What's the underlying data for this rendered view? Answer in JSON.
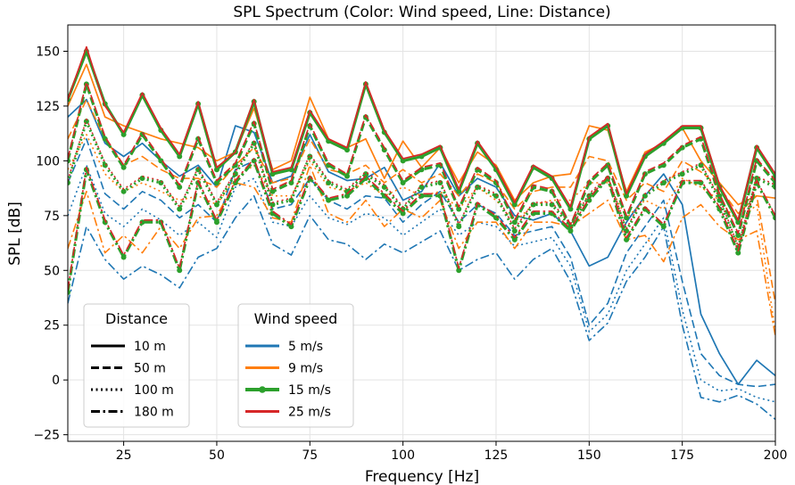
{
  "chart_data": {
    "type": "line",
    "title": "SPL Spectrum (Color: Wind speed, Line: Distance)",
    "xlabel": "Frequency [Hz]",
    "ylabel": "SPL [dB]",
    "xlim": [
      10,
      200
    ],
    "ylim": [
      -28,
      162
    ],
    "xticks": [
      25,
      50,
      75,
      100,
      125,
      150,
      175,
      200
    ],
    "yticks": [
      -25,
      0,
      25,
      50,
      75,
      100,
      125,
      150
    ],
    "grid": true,
    "x": [
      10,
      15,
      20,
      25,
      30,
      35,
      40,
      45,
      50,
      55,
      60,
      65,
      70,
      75,
      80,
      85,
      90,
      95,
      100,
      105,
      110,
      115,
      120,
      125,
      130,
      135,
      140,
      145,
      150,
      155,
      160,
      165,
      170,
      175,
      180,
      185,
      190,
      195,
      200
    ],
    "legends": [
      {
        "title": "Distance",
        "position": "lower-left",
        "entries": [
          {
            "label": "10 m",
            "dash": "solid"
          },
          {
            "label": "50 m",
            "dash": "dashed"
          },
          {
            "label": "100 m",
            "dash": "dotted"
          },
          {
            "label": "180 m",
            "dash": "dashdot"
          }
        ]
      },
      {
        "title": "Wind speed",
        "position": "lower-center",
        "entries": [
          {
            "label": "5 m/s",
            "color": "#1f77b4"
          },
          {
            "label": "9 m/s",
            "color": "#ff7f0e"
          },
          {
            "label": "15 m/s",
            "color": "#2ca02c",
            "marker": "circle"
          },
          {
            "label": "25 m/s",
            "color": "#d62728"
          }
        ]
      }
    ],
    "series": [
      {
        "wind": "5 m/s",
        "distance": "10 m",
        "color": "#1f77b4",
        "dash": "solid",
        "values": [
          120,
          128,
          108,
          102,
          108,
          100,
          93,
          98,
          88,
          116,
          113,
          90,
          93,
          112,
          95,
          91,
          92,
          97,
          82,
          86,
          99,
          84,
          92,
          88,
          75,
          73,
          76,
          68,
          52,
          56,
          72,
          84,
          94,
          80,
          30,
          12,
          -2,
          9,
          2
        ]
      },
      {
        "wind": "5 m/s",
        "distance": "50 m",
        "color": "#1f77b4",
        "dash": "dashed",
        "values": [
          90,
          110,
          85,
          78,
          86,
          82,
          74,
          80,
          72,
          96,
          100,
          78,
          80,
          92,
          82,
          78,
          84,
          83,
          72,
          80,
          86,
          72,
          80,
          76,
          66,
          68,
          70,
          56,
          25,
          35,
          58,
          70,
          82,
          45,
          12,
          2,
          -2,
          -3,
          -2
        ]
      },
      {
        "wind": "5 m/s",
        "distance": "100 m",
        "color": "#1f77b4",
        "dash": "dotted",
        "values": [
          75,
          98,
          76,
          70,
          78,
          73,
          66,
          72,
          65,
          88,
          92,
          72,
          70,
          84,
          74,
          71,
          76,
          74,
          66,
          72,
          78,
          66,
          72,
          70,
          61,
          63,
          65,
          52,
          22,
          30,
          50,
          62,
          74,
          32,
          0,
          -5,
          -4,
          -8,
          -10
        ]
      },
      {
        "wind": "5 m/s",
        "distance": "180 m",
        "color": "#1f77b4",
        "dash": "dashdot",
        "values": [
          35,
          70,
          55,
          46,
          52,
          48,
          42,
          56,
          60,
          74,
          84,
          62,
          57,
          75,
          64,
          62,
          55,
          62,
          58,
          63,
          68,
          50,
          55,
          58,
          46,
          55,
          60,
          45,
          18,
          26,
          45,
          56,
          70,
          25,
          -8,
          -10,
          -7,
          -11,
          -18
        ]
      },
      {
        "wind": "9 m/s",
        "distance": "10 m",
        "color": "#ff7f0e",
        "dash": "solid",
        "values": [
          125,
          144,
          120,
          116,
          113,
          110,
          108,
          106,
          100,
          104,
          124,
          96,
          100,
          129,
          110,
          106,
          110,
          92,
          109,
          97,
          106,
          90,
          104,
          98,
          82,
          90,
          93,
          94,
          116,
          114,
          86,
          104,
          108,
          115,
          100,
          90,
          80,
          84,
          83
        ]
      },
      {
        "wind": "9 m/s",
        "distance": "50 m",
        "color": "#ff7f0e",
        "dash": "dashed",
        "values": [
          110,
          128,
          110,
          98,
          102,
          96,
          92,
          92,
          88,
          98,
          106,
          90,
          92,
          110,
          96,
          94,
          98,
          90,
          96,
          90,
          94,
          84,
          94,
          90,
          78,
          86,
          88,
          88,
          102,
          100,
          82,
          90,
          86,
          100,
          95,
          88,
          76,
          84,
          35
        ]
      },
      {
        "wind": "9 m/s",
        "distance": "100 m",
        "color": "#ff7f0e",
        "dash": "dotted",
        "values": [
          96,
          112,
          94,
          86,
          90,
          86,
          82,
          84,
          80,
          92,
          98,
          84,
          84,
          100,
          88,
          86,
          90,
          84,
          88,
          84,
          86,
          78,
          88,
          82,
          72,
          80,
          82,
          82,
          90,
          90,
          74,
          82,
          78,
          92,
          88,
          82,
          72,
          80,
          22
        ]
      },
      {
        "wind": "9 m/s",
        "distance": "180 m",
        "color": "#ff7f0e",
        "dash": "dashdot",
        "values": [
          60,
          86,
          58,
          66,
          58,
          70,
          60,
          74,
          75,
          90,
          88,
          74,
          72,
          98,
          76,
          72,
          82,
          70,
          78,
          74,
          82,
          60,
          72,
          72,
          60,
          72,
          72,
          70,
          76,
          82,
          64,
          66,
          54,
          74,
          80,
          70,
          64,
          68,
          20
        ]
      },
      {
        "wind": "15 m/s",
        "distance": "10 m",
        "color": "#2ca02c",
        "dash": "solid",
        "values": [
          128,
          150,
          126,
          112,
          130,
          114,
          102,
          126,
          96,
          104,
          127,
          94,
          96,
          122,
          109,
          105,
          135,
          113,
          100,
          102,
          106,
          86,
          108,
          96,
          80,
          97,
          92,
          78,
          110,
          116,
          84,
          102,
          108,
          115,
          115,
          88,
          72,
          106,
          93
        ]
      },
      {
        "wind": "15 m/s",
        "distance": "50 m",
        "color": "#2ca02c",
        "dash": "dashed",
        "values": [
          100,
          135,
          110,
          97,
          112,
          100,
          88,
          110,
          90,
          98,
          117,
          86,
          90,
          116,
          98,
          93,
          120,
          105,
          90,
          96,
          98,
          78,
          96,
          90,
          72,
          88,
          86,
          70,
          90,
          98,
          74,
          94,
          98,
          106,
          110,
          84,
          66,
          100,
          90
        ]
      },
      {
        "wind": "15 m/s",
        "distance": "100 m",
        "color": "#2ca02c",
        "dash": "dotted",
        "values": [
          90,
          118,
          98,
          86,
          92,
          90,
          78,
          96,
          80,
          94,
          108,
          80,
          82,
          102,
          90,
          86,
          94,
          88,
          78,
          88,
          90,
          70,
          88,
          84,
          68,
          80,
          80,
          70,
          84,
          92,
          68,
          84,
          90,
          94,
          98,
          82,
          60,
          92,
          88
        ]
      },
      {
        "wind": "15 m/s",
        "distance": "180 m",
        "color": "#2ca02c",
        "dash": "dashdot",
        "values": [
          40,
          96,
          72,
          56,
          72,
          72,
          50,
          90,
          72,
          90,
          100,
          76,
          70,
          92,
          82,
          84,
          92,
          84,
          76,
          84,
          84,
          50,
          80,
          74,
          64,
          76,
          76,
          68,
          82,
          92,
          64,
          78,
          70,
          90,
          90,
          78,
          58,
          90,
          74
        ]
      },
      {
        "wind": "25 m/s",
        "distance": "10 m",
        "color": "#d62728",
        "dash": "solid",
        "values": [
          128,
          152,
          125,
          113,
          131,
          115,
          103,
          127,
          97,
          104,
          128,
          95,
          97,
          123,
          110,
          106,
          136,
          114,
          101,
          103,
          107,
          87,
          109,
          97,
          81,
          98,
          93,
          79,
          111,
          117,
          85,
          103,
          109,
          116,
          116,
          89,
          73,
          107,
          94
        ]
      },
      {
        "wind": "25 m/s",
        "distance": "50 m",
        "color": "#d62728",
        "dash": "dashed",
        "values": [
          101,
          136,
          111,
          98,
          113,
          101,
          89,
          111,
          91,
          99,
          118,
          87,
          91,
          117,
          99,
          94,
          121,
          106,
          91,
          97,
          99,
          79,
          97,
          91,
          73,
          89,
          87,
          71,
          91,
          99,
          75,
          95,
          99,
          107,
          111,
          85,
          67,
          101,
          91
        ]
      },
      {
        "wind": "25 m/s",
        "distance": "100 m",
        "color": "#d62728",
        "dash": "dotted",
        "values": [
          91,
          119,
          99,
          87,
          93,
          91,
          79,
          97,
          81,
          95,
          109,
          81,
          83,
          103,
          91,
          87,
          95,
          89,
          79,
          89,
          91,
          71,
          89,
          85,
          69,
          81,
          81,
          71,
          85,
          93,
          69,
          85,
          91,
          95,
          99,
          83,
          61,
          93,
          89
        ]
      },
      {
        "wind": "25 m/s",
        "distance": "180 m",
        "color": "#d62728",
        "dash": "dashdot",
        "values": [
          41,
          97,
          73,
          57,
          73,
          73,
          51,
          91,
          73,
          91,
          101,
          77,
          71,
          93,
          83,
          85,
          93,
          85,
          77,
          85,
          85,
          51,
          81,
          75,
          65,
          77,
          77,
          69,
          83,
          93,
          65,
          79,
          71,
          91,
          91,
          79,
          59,
          91,
          75
        ]
      }
    ]
  }
}
